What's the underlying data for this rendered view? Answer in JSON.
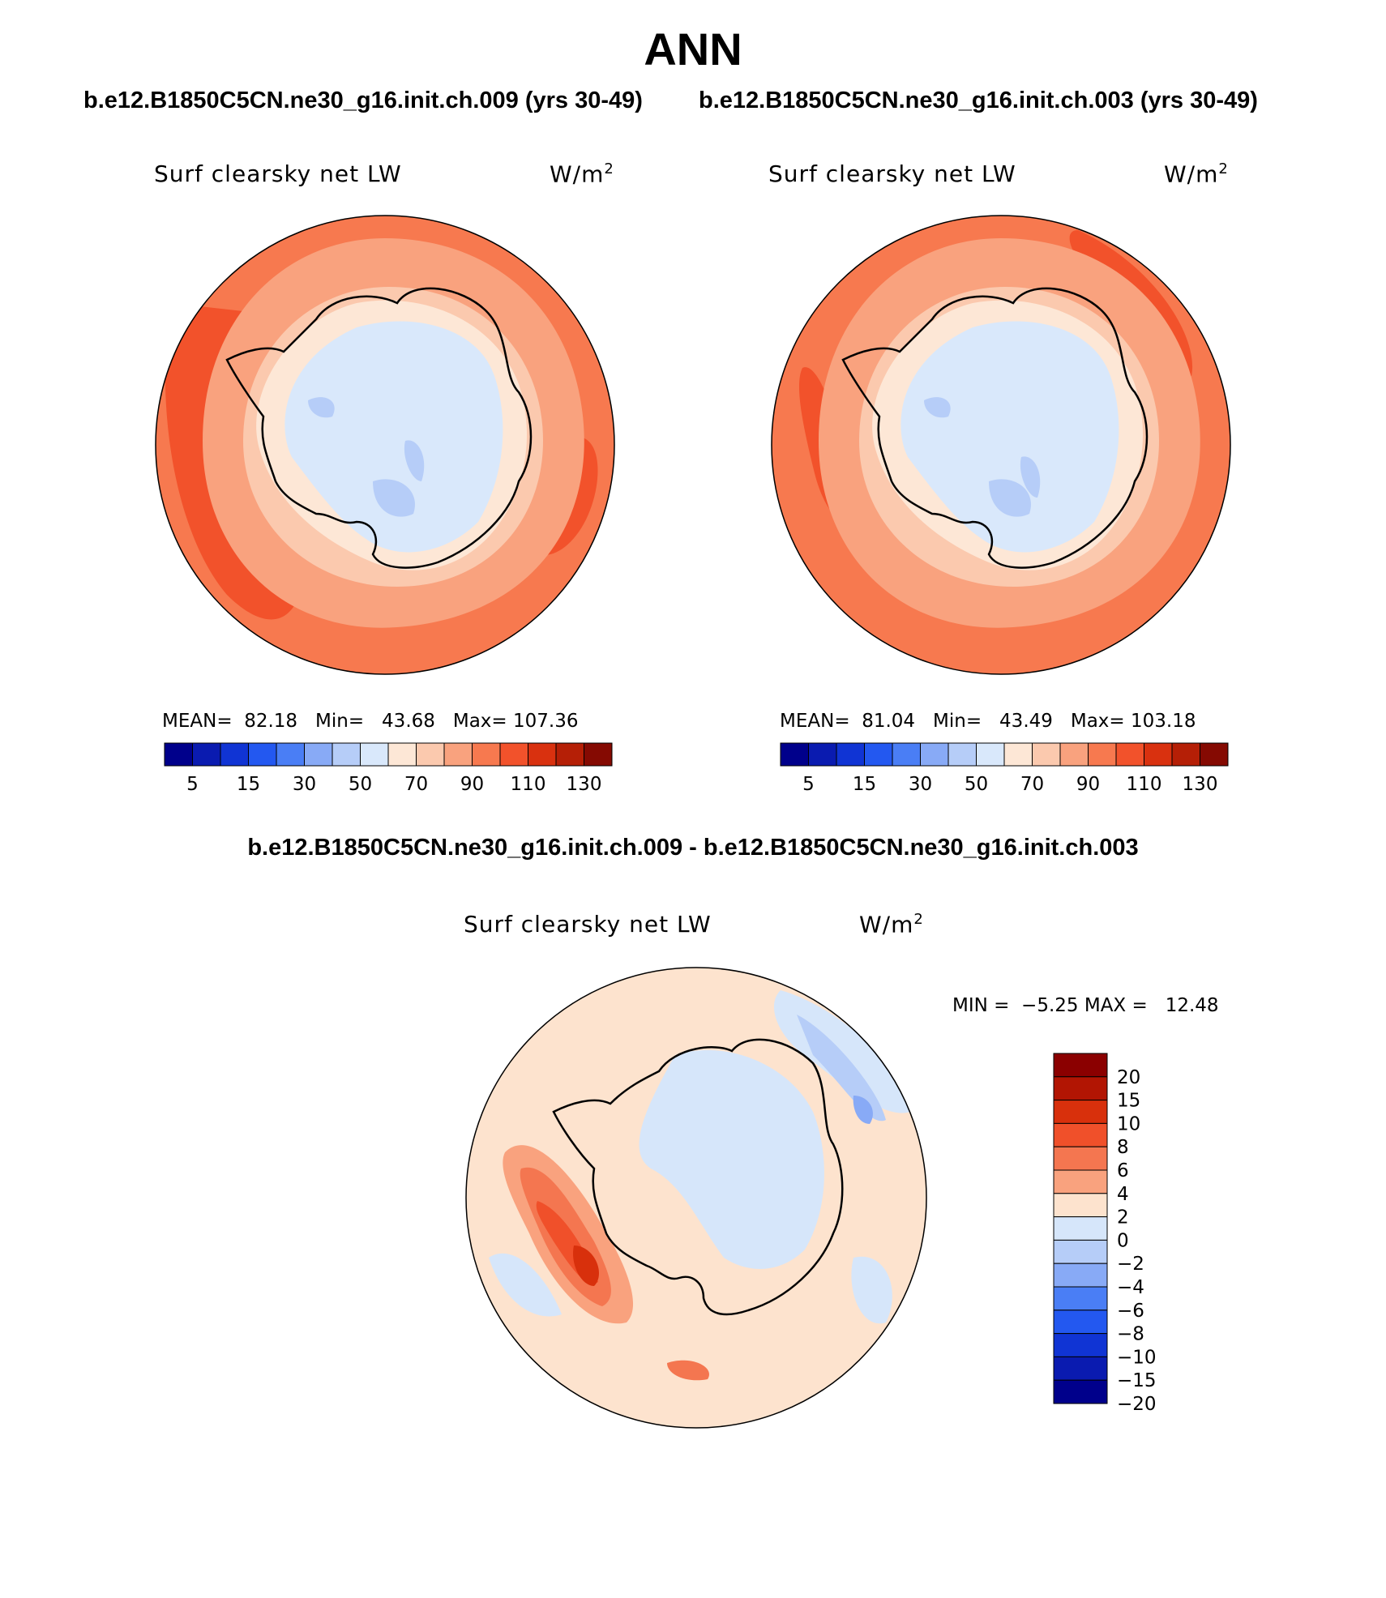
{
  "title": "ANN",
  "case_titles": [
    "b.e12.B1850C5CN.ne30_g16.init.ch.009 (yrs 30-49)",
    "b.e12.B1850C5CN.ne30_g16.init.ch.003 (yrs 30-49)"
  ],
  "diff_title": "b.e12.B1850C5CN.ne30_g16.init.ch.009 - b.e12.B1850C5CN.ne30_g16.init.ch.003",
  "variable": "Surf clearsky net LW",
  "units_base": "W/m",
  "units_exp": "2",
  "panels": [
    {
      "mean_label": "MEAN=",
      "mean": "82.18",
      "min_label": "Min=",
      "min": "43.68",
      "max_label": "Max=",
      "max": "107.36"
    },
    {
      "mean_label": "MEAN=",
      "mean": "81.04",
      "min_label": "Min=",
      "min": "43.49",
      "max_label": "Max=",
      "max": "103.18"
    }
  ],
  "abs_colorbar": {
    "colors": [
      "#00008b",
      "#0a1bb0",
      "#1034d4",
      "#2358f0",
      "#4a7ef5",
      "#88aaf6",
      "#b6cdf8",
      "#d9e8fb",
      "#fde7d6",
      "#fbc9ae",
      "#f9a27e",
      "#f7794f",
      "#f2522b",
      "#d9310f",
      "#b51f06",
      "#850a02"
    ],
    "labels": [
      "5",
      "15",
      "30",
      "50",
      "70",
      "90",
      "110",
      "130"
    ]
  },
  "diff_stats": {
    "min_label": "MIN =",
    "min": "−5.25",
    "max_label": "MAX =",
    "max": "12.48"
  },
  "diff_colorbar": {
    "colors": [
      "#8b0000",
      "#b21503",
      "#d8300c",
      "#f0502a",
      "#f47650",
      "#f9a27e",
      "#fde3ce",
      "#d6e6fa",
      "#b6cdf8",
      "#88aaf6",
      "#4a7ef5",
      "#2358f0",
      "#1034d4",
      "#0a1bb0",
      "#00008b"
    ],
    "labels": [
      "20",
      "15",
      "10",
      "8",
      "6",
      "4",
      "2",
      "0",
      "−2",
      "−4",
      "−6",
      "−8",
      "−10",
      "−15",
      "−20"
    ]
  },
  "chart_data": {
    "type": "heatmap",
    "title": "ANN",
    "projection": "south polar stereographic",
    "variable": "Surf clearsky net LW",
    "units": "W/m2",
    "panels": [
      {
        "case": "b.e12.B1850C5CN.ne30_g16.init.ch.009 (yrs 30-49)",
        "mean": 82.18,
        "min": 43.68,
        "max": 107.36,
        "contour_levels": [
          5,
          10,
          15,
          20,
          30,
          40,
          50,
          60,
          70,
          80,
          90,
          100,
          110,
          120,
          130
        ]
      },
      {
        "case": "b.e12.B1850C5CN.ne30_g16.init.ch.003 (yrs 30-49)",
        "mean": 81.04,
        "min": 43.49,
        "max": 103.18,
        "contour_levels": [
          5,
          10,
          15,
          20,
          30,
          40,
          50,
          60,
          70,
          80,
          90,
          100,
          110,
          120,
          130
        ]
      },
      {
        "case": "difference",
        "min": -5.25,
        "max": 12.48,
        "contour_levels": [
          -20,
          -15,
          -10,
          -8,
          -6,
          -4,
          -2,
          0,
          2,
          4,
          6,
          8,
          10,
          15,
          20
        ]
      }
    ]
  }
}
